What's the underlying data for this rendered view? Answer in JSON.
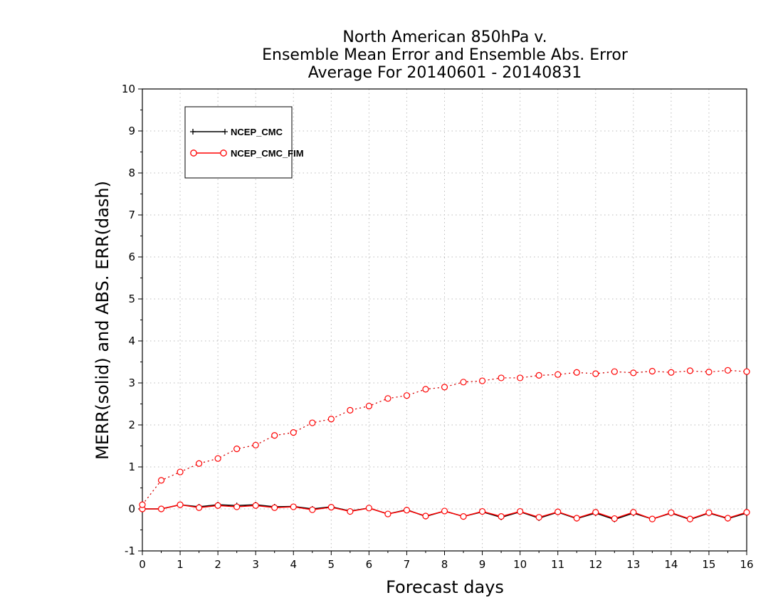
{
  "colors": {
    "series_black": "#000000",
    "series_red": "#ff0000",
    "grid": "#bbbbbb",
    "background": "#ffffff"
  },
  "chart_data": {
    "type": "line",
    "title_lines": [
      "North American 850hPa v.",
      "Ensemble Mean Error and Ensemble Abs. Error",
      "Average For 20140601 - 20140831"
    ],
    "xlabel": "Forecast days",
    "ylabel": "MERR(solid) and ABS. ERR(dash)",
    "xlim": [
      0,
      16
    ],
    "ylim": [
      -1,
      10
    ],
    "xticks": [
      "0",
      "1",
      "2",
      "3",
      "4",
      "5",
      "6",
      "7",
      "8",
      "9",
      "10",
      "11",
      "12",
      "13",
      "14",
      "15",
      "16"
    ],
    "yticks": [
      "-1",
      "0",
      "1",
      "2",
      "3",
      "4",
      "5",
      "6",
      "7",
      "8",
      "9",
      "10"
    ],
    "grid": true,
    "legend_position": "top-left",
    "x": [
      0,
      0.5,
      1,
      1.5,
      2,
      2.5,
      3,
      3.5,
      4,
      4.5,
      5,
      5.5,
      6,
      6.5,
      7,
      7.5,
      8,
      8.5,
      9,
      9.5,
      10,
      10.5,
      11,
      11.5,
      12,
      12.5,
      13,
      13.5,
      14,
      14.5,
      15,
      15.5,
      16
    ],
    "series": [
      {
        "name": "NCEP_CMC",
        "marker": "plus",
        "color": "#000000",
        "merr": [
          0.0,
          0.0,
          0.1,
          0.05,
          0.1,
          0.08,
          0.1,
          0.05,
          0.06,
          0.0,
          0.05,
          -0.05,
          0.02,
          -0.12,
          -0.02,
          -0.18,
          -0.05,
          -0.18,
          -0.07,
          -0.2,
          -0.07,
          -0.22,
          -0.08,
          -0.23,
          -0.1,
          -0.25,
          -0.1,
          -0.24,
          -0.1,
          -0.25,
          -0.1,
          -0.23,
          -0.1
        ],
        "abs_err": [
          0.1,
          0.68,
          0.88,
          1.08,
          1.2,
          1.43,
          1.52,
          1.75,
          1.82,
          2.05,
          2.14,
          2.35,
          2.45,
          2.63,
          2.7,
          2.85,
          2.9,
          3.02,
          3.05,
          3.12,
          3.12,
          3.18,
          3.2,
          3.25,
          3.22,
          3.27,
          3.24,
          3.28,
          3.25,
          3.29,
          3.26,
          3.3,
          3.27
        ]
      },
      {
        "name": "NCEP_CMC_FIM",
        "marker": "circle",
        "color": "#ff0000",
        "merr": [
          0.0,
          0.0,
          0.1,
          0.03,
          0.08,
          0.05,
          0.08,
          0.03,
          0.05,
          -0.02,
          0.04,
          -0.06,
          0.02,
          -0.12,
          -0.03,
          -0.17,
          -0.05,
          -0.18,
          -0.06,
          -0.18,
          -0.06,
          -0.2,
          -0.07,
          -0.22,
          -0.08,
          -0.23,
          -0.08,
          -0.24,
          -0.09,
          -0.24,
          -0.09,
          -0.22,
          -0.08
        ],
        "abs_err": [
          0.1,
          0.68,
          0.88,
          1.08,
          1.2,
          1.43,
          1.52,
          1.75,
          1.82,
          2.05,
          2.14,
          2.35,
          2.45,
          2.63,
          2.7,
          2.85,
          2.9,
          3.02,
          3.05,
          3.12,
          3.12,
          3.18,
          3.2,
          3.25,
          3.22,
          3.27,
          3.24,
          3.28,
          3.25,
          3.29,
          3.26,
          3.3,
          3.27
        ]
      }
    ]
  }
}
